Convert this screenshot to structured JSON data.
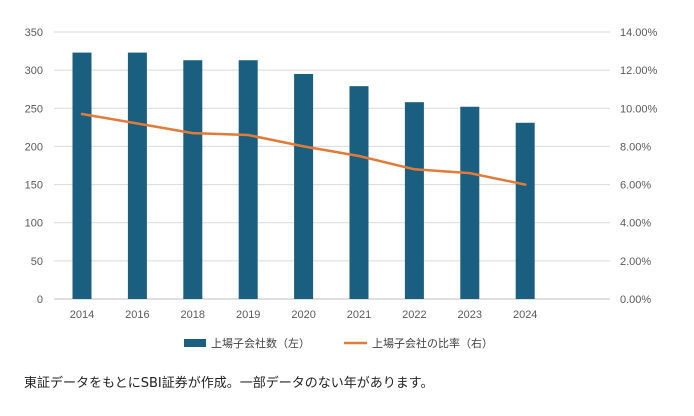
{
  "chart_data": {
    "type": "bar+line",
    "categories": [
      "2014",
      "2016",
      "2018",
      "2019",
      "2020",
      "2021",
      "2022",
      "2023",
      "2024"
    ],
    "series": [
      {
        "name": "上場子会社数（左）",
        "type": "bar",
        "axis": "left",
        "color": "#1a5e80",
        "values": [
          323,
          323,
          313,
          313,
          295,
          279,
          258,
          252,
          231
        ]
      },
      {
        "name": "上場子会社の比率（右）",
        "type": "line",
        "axis": "right",
        "color": "#e07b39",
        "values": [
          0.097,
          0.092,
          0.087,
          0.086,
          0.08,
          0.075,
          0.068,
          0.066,
          0.06
        ]
      }
    ],
    "y_left": {
      "min": 0,
      "max": 350,
      "ticks": [
        "0",
        "50",
        "100",
        "150",
        "200",
        "250",
        "300",
        "350"
      ]
    },
    "y_right": {
      "min": 0,
      "max": 0.14,
      "ticks": [
        "0.00%",
        "2.00%",
        "4.00%",
        "6.00%",
        "8.00%",
        "10.00%",
        "12.00%",
        "14.00%"
      ]
    },
    "grid": true,
    "legend_position": "bottom",
    "title": "",
    "xlabel": "",
    "ylabel": ""
  },
  "caption": "東証データをもとにSBI証券が作成。一部データのない年があります。"
}
